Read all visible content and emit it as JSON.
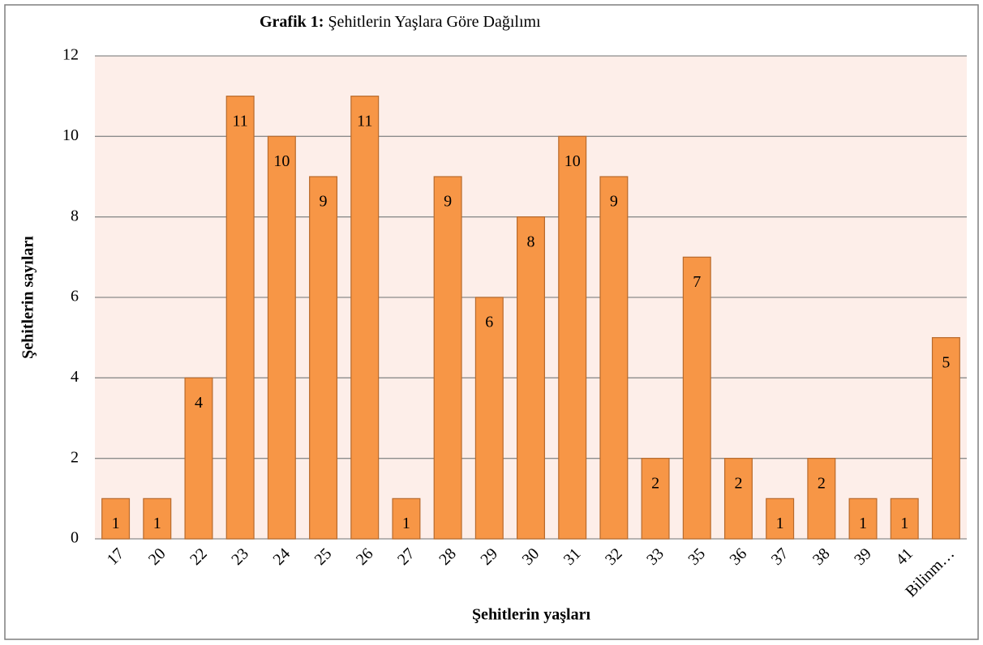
{
  "chart_data": {
    "type": "bar",
    "title_label": "Grafik 1:",
    "title": "Şehitlerin Yaşlara Göre Dağılımı",
    "xlabel": "Şehitlerin yaşları",
    "ylabel": "Şehitlerin sayıları",
    "categories": [
      "17",
      "20",
      "22",
      "23",
      "24",
      "25",
      "26",
      "27",
      "28",
      "29",
      "30",
      "31",
      "32",
      "33",
      "35",
      "36",
      "37",
      "38",
      "39",
      "41",
      "Bilinm…"
    ],
    "values": [
      1,
      1,
      4,
      11,
      10,
      9,
      11,
      1,
      9,
      6,
      8,
      10,
      9,
      2,
      7,
      2,
      1,
      2,
      1,
      1,
      5
    ],
    "color": "#f79646",
    "ylim": [
      0,
      12
    ],
    "yticks": [
      0,
      2,
      4,
      6,
      8,
      10,
      12
    ],
    "grid": true
  }
}
